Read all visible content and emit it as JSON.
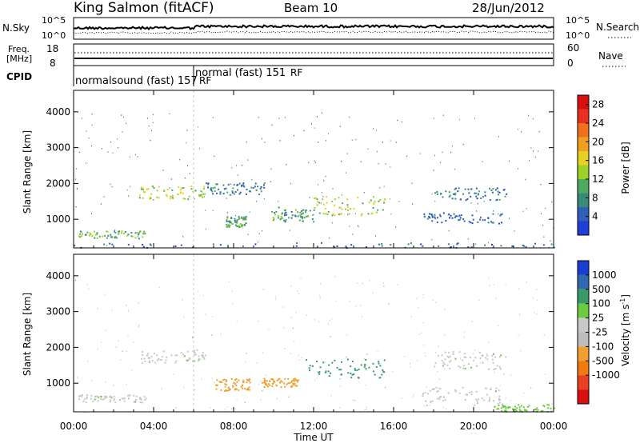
{
  "header": {
    "station": "King Salmon (fitACF)",
    "beam": "Beam 10",
    "date": "28/Jun/2012"
  },
  "panels": {
    "noise": {
      "left_label": "N.Sky",
      "right_label": "N.Search",
      "left_ticks": [
        "10^5",
        "10^0"
      ],
      "right_ticks": [
        "10^5",
        "10^0"
      ]
    },
    "freq": {
      "left_label_1": "Freq.",
      "left_label_2": "[MHz]",
      "right_label": "Nave",
      "left_ticks": [
        "18",
        "8"
      ],
      "right_ticks": [
        "60",
        "0"
      ]
    },
    "cpid": {
      "label": "CPID",
      "modes": [
        "normalsound (fast) 157",
        "normal (fast) 151"
      ],
      "markers": [
        "RF",
        "RF"
      ]
    }
  },
  "colors": {
    "power": [
      "#1f3fd6",
      "#2f5fb8",
      "#3a8a7a",
      "#4fa860",
      "#9ad22a",
      "#e8d020",
      "#f0a020",
      "#f07020",
      "#e83020",
      "#d81010"
    ],
    "velocity": [
      "#1a3fd0",
      "#2f6ab0",
      "#3b9a6a",
      "#6ccc40",
      "#c8c8c8",
      "#bdbdbd",
      "#f0a030",
      "#f07a10",
      "#e84020",
      "#d81010"
    ]
  },
  "chart_data": [
    {
      "type": "heatmap",
      "title": "Power",
      "xlabel": "Time UT",
      "ylabel": "Slant Range [km]",
      "colorbar_label": "Power [dB]",
      "x_ticks": [
        "00:00",
        "04:00",
        "08:00",
        "12:00",
        "16:00",
        "20:00",
        "00:00"
      ],
      "y_ticks": [
        1000,
        2000,
        3000,
        4000
      ],
      "ylim": [
        200,
        4600
      ],
      "colorbar_ticks": [
        4,
        8,
        12,
        16,
        20,
        24,
        28
      ],
      "colorbar_range": [
        0,
        30
      ],
      "regions": [
        {
          "t": [
            0.2,
            3.6
          ],
          "r": [
            480,
            700
          ],
          "v": 11
        },
        {
          "t": [
            3.2,
            6.6
          ],
          "r": [
            1580,
            1950
          ],
          "v": 14
        },
        {
          "t": [
            6.6,
            9.6
          ],
          "r": [
            1700,
            2050
          ],
          "v": 6
        },
        {
          "t": [
            7.6,
            8.6
          ],
          "r": [
            800,
            1100
          ],
          "v": 10
        },
        {
          "t": [
            9.8,
            12.0
          ],
          "r": [
            950,
            1350
          ],
          "v": 9
        },
        {
          "t": [
            12.0,
            15.6
          ],
          "r": [
            1100,
            1650
          ],
          "v": 14
        },
        {
          "t": [
            18.0,
            21.8
          ],
          "r": [
            1550,
            1900
          ],
          "v": 6
        },
        {
          "t": [
            17.4,
            21.4
          ],
          "r": [
            900,
            1200
          ],
          "v": 5
        },
        {
          "t": [
            0.0,
            24.0
          ],
          "r": [
            220,
            360
          ],
          "v": 4
        }
      ]
    },
    {
      "type": "heatmap",
      "title": "Velocity",
      "xlabel": "Time UT",
      "ylabel": "Slant Range [km]",
      "colorbar_label": "Velocity [m s^-1]",
      "x_ticks": [
        "00:00",
        "04:00",
        "08:00",
        "12:00",
        "16:00",
        "20:00",
        "00:00"
      ],
      "y_ticks": [
        1000,
        2000,
        3000,
        4000
      ],
      "ylim": [
        200,
        4600
      ],
      "colorbar_ticks": [
        "1000",
        "500",
        "100",
        "25",
        "-25",
        "-100",
        "-500",
        "-1000"
      ],
      "regions": [
        {
          "t": [
            0.2,
            3.6
          ],
          "r": [
            480,
            700
          ],
          "v": 0
        },
        {
          "t": [
            3.2,
            6.6
          ],
          "r": [
            1580,
            1950
          ],
          "v": 0
        },
        {
          "t": [
            7.0,
            8.8
          ],
          "r": [
            800,
            1150
          ],
          "v": -300
        },
        {
          "t": [
            9.4,
            11.2
          ],
          "r": [
            900,
            1150
          ],
          "v": -250
        },
        {
          "t": [
            11.6,
            15.6
          ],
          "r": [
            1150,
            1700
          ],
          "v": 400
        },
        {
          "t": [
            18.0,
            21.6
          ],
          "r": [
            1400,
            1900
          ],
          "v": 0
        },
        {
          "t": [
            17.4,
            21.4
          ],
          "r": [
            400,
            900
          ],
          "v": 0
        },
        {
          "t": [
            21.0,
            24.0
          ],
          "r": [
            220,
            420
          ],
          "v": 60
        }
      ]
    }
  ]
}
